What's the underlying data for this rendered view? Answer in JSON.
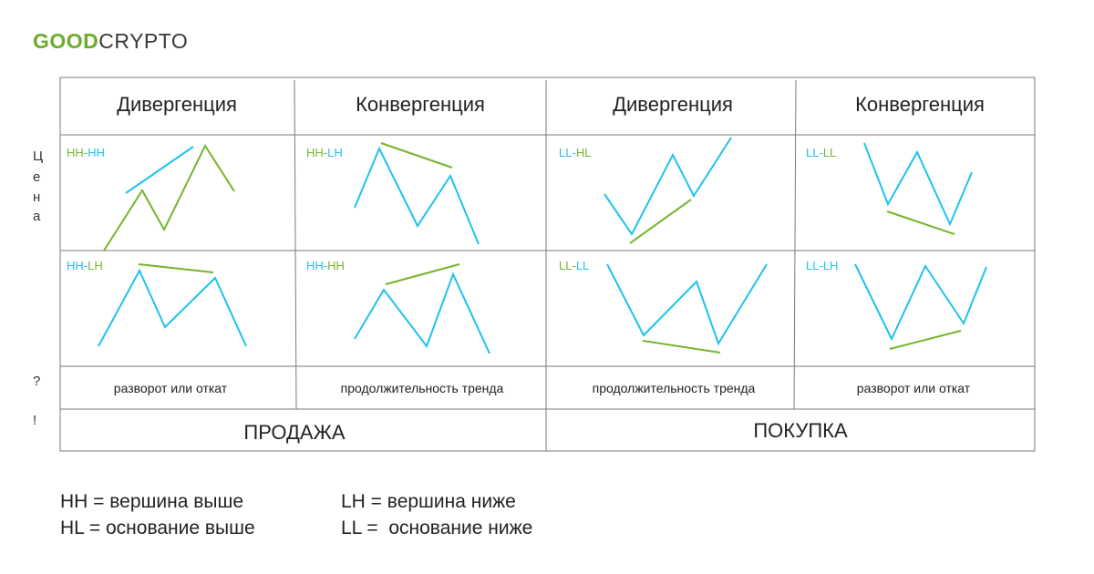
{
  "logo": {
    "part1": "GOOD",
    "part2": "CRYPTO"
  },
  "colors": {
    "cyan": "#1ec3ec",
    "green": "#74b52d",
    "grid": "#7a7a7a"
  },
  "side_label": [
    "Ц",
    "е",
    "н",
    "а"
  ],
  "side_marks": [
    "?",
    "!"
  ],
  "headers": [
    "Дивергенция",
    "Конвергенция",
    "Дивергенция",
    "Конвергенция"
  ],
  "panels": [
    {
      "row": 0,
      "col": 0,
      "label": [
        {
          "t": "HH",
          "c": "green"
        },
        {
          "t": "-",
          "c": "green"
        },
        {
          "t": "HH",
          "c": "cyan"
        }
      ]
    },
    {
      "row": 0,
      "col": 1,
      "label": [
        {
          "t": "HH",
          "c": "green"
        },
        {
          "t": "-",
          "c": "green"
        },
        {
          "t": "LH",
          "c": "cyan"
        }
      ]
    },
    {
      "row": 0,
      "col": 2,
      "label": [
        {
          "t": "LL",
          "c": "cyan"
        },
        {
          "t": "-",
          "c": "cyan"
        },
        {
          "t": "HL",
          "c": "green"
        }
      ]
    },
    {
      "row": 0,
      "col": 3,
      "label": [
        {
          "t": "LL",
          "c": "cyan"
        },
        {
          "t": "-",
          "c": "cyan"
        },
        {
          "t": "LL",
          "c": "green"
        }
      ]
    },
    {
      "row": 1,
      "col": 0,
      "label": [
        {
          "t": "HH",
          "c": "cyan"
        },
        {
          "t": "-",
          "c": "cyan"
        },
        {
          "t": "LH",
          "c": "green"
        }
      ]
    },
    {
      "row": 1,
      "col": 1,
      "label": [
        {
          "t": "HH",
          "c": "cyan"
        },
        {
          "t": "-",
          "c": "cyan"
        },
        {
          "t": "HH",
          "c": "green"
        }
      ]
    },
    {
      "row": 1,
      "col": 2,
      "label": [
        {
          "t": "LL",
          "c": "green"
        },
        {
          "t": "-",
          "c": "green"
        },
        {
          "t": "LL",
          "c": "cyan"
        }
      ]
    },
    {
      "row": 1,
      "col": 3,
      "label": [
        {
          "t": "LL",
          "c": "cyan"
        },
        {
          "t": "-",
          "c": "cyan"
        },
        {
          "t": "LH",
          "c": "cyan"
        }
      ]
    }
  ],
  "interpretations": [
    "разворот или откат",
    "продолжительность тренда",
    "продолжительность тренда",
    "разворот или откат"
  ],
  "actions": [
    "ПРОДАЖА",
    "ПОКУПКА"
  ],
  "legend": [
    [
      "HH = вершина выше",
      "LH = вершина ниже"
    ],
    [
      "HL = основание выше",
      "LL =  основание ниже"
    ]
  ]
}
